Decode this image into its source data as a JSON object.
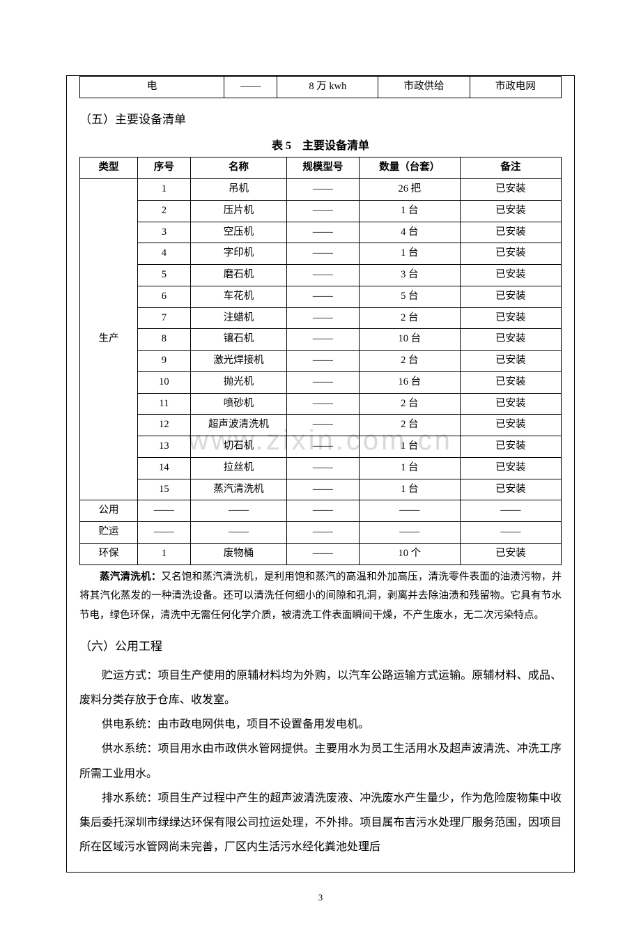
{
  "watermark": "www.zixin.com.cn",
  "topTable": {
    "row": [
      "电",
      "——",
      "8 万 kwh",
      "市政供给",
      "市政电网"
    ],
    "colWidths": [
      "30%",
      "11%",
      "21%",
      "19%",
      "19%"
    ]
  },
  "section5": {
    "heading": "（五）主要设备清单",
    "caption": "表 5　主要设备清单",
    "headers": [
      "类型",
      "序号",
      "名称",
      "规模型号",
      "数量（台套）",
      "备注"
    ],
    "colWidths": [
      "12%",
      "11%",
      "20%",
      "15%",
      "21%",
      "21%"
    ],
    "productionLabel": "生产",
    "productionRows": [
      [
        "1",
        "吊机",
        "——",
        "26 把",
        "已安装"
      ],
      [
        "2",
        "压片机",
        "——",
        "1 台",
        "已安装"
      ],
      [
        "3",
        "空压机",
        "——",
        "4 台",
        "已安装"
      ],
      [
        "4",
        "字印机",
        "——",
        "1 台",
        "已安装"
      ],
      [
        "5",
        "磨石机",
        "——",
        "3 台",
        "已安装"
      ],
      [
        "6",
        "车花机",
        "——",
        "5 台",
        "已安装"
      ],
      [
        "7",
        "注蜡机",
        "——",
        "2 台",
        "已安装"
      ],
      [
        "8",
        "镶石机",
        "——",
        "10 台",
        "已安装"
      ],
      [
        "9",
        "激光焊接机",
        "——",
        "2 台",
        "已安装"
      ],
      [
        "10",
        "抛光机",
        "——",
        "16 台",
        "已安装"
      ],
      [
        "11",
        "喷砂机",
        "——",
        "2 台",
        "已安装"
      ],
      [
        "12",
        "超声波清洗机",
        "——",
        "2 台",
        "已安装"
      ],
      [
        "13",
        "切石机",
        "——",
        "1 台",
        "已安装"
      ],
      [
        "14",
        "拉丝机",
        "——",
        "1 台",
        "已安装"
      ],
      [
        "15",
        "蒸汽清洗机",
        "——",
        "1 台",
        "已安装"
      ]
    ],
    "otherRows": [
      [
        "公用",
        "——",
        "——",
        "——",
        "——",
        "——"
      ],
      [
        "贮运",
        "——",
        "——",
        "——",
        "——",
        "——"
      ],
      [
        "环保",
        "1",
        "废物桶",
        "——",
        "10 个",
        "已安装"
      ]
    ]
  },
  "steamNote": {
    "boldLead": "蒸汽清洗机：",
    "text": "又名饱和蒸汽清洗机，是利用饱和蒸汽的高温和外加高压，清洗零件表面的油渍污物，并将其汽化蒸发的一种清洗设备。还可以清洗任何细小的间隙和孔洞，剥离并去除油渍和残留物。它具有节水节电，绿色环保，清洗中无需任何化学介质，被清洗工件表面瞬间干燥，不产生废水，无二次污染特点。"
  },
  "section6": {
    "heading": "（六）公用工程",
    "paragraphs": [
      "贮运方式：项目生产使用的原辅材料均为外购，以汽车公路运输方式运输。原辅材料、成品、废料分类存放于仓库、收发室。",
      "供电系统：由市政电网供电，项目不设置备用发电机。",
      "供水系统：项目用水由市政供水管网提供。主要用水为员工生活用水及超声波清洗、冲洗工序所需工业用水。",
      "排水系统：项目生产过程中产生的超声波清洗废液、冲洗废水产生量少，作为危险废物集中收集后委托深圳市绿绿达环保有限公司拉运处理，不外排。项目属布吉污水处理厂服务范围，因项目所在区域污水管网尚未完善，厂区内生活污水经化粪池处理后"
    ]
  },
  "pageNumber": "3",
  "colors": {
    "background": "#ffffff",
    "text": "#000000",
    "border": "#000000",
    "watermark": "#d9d9d9"
  },
  "typography": {
    "body_fontsize": 16,
    "table_fontsize": 14.5,
    "caption_fontsize": 16,
    "heading_fontsize": 17,
    "paragraph_lineheight": 2.0
  }
}
